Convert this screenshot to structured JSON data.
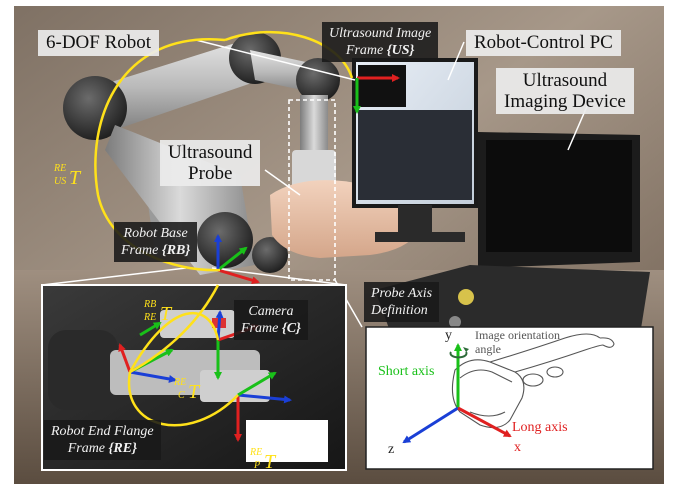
{
  "labels": {
    "robot": "6-DOF Robot",
    "us_frame_line1": "Ultrasound Image",
    "us_frame_line2": "Frame ",
    "us_frame_sym": "{US}",
    "pc": "Robot-Control PC",
    "imaging_line1": "Ultrasound",
    "imaging_line2": "Imaging Device",
    "probe_line1": "Ultrasound",
    "probe_line2": "Probe",
    "base_line1": "Robot Base",
    "base_line2": "Frame ",
    "base_sym": "{RB}",
    "camera_line1": "Camera",
    "camera_line2": "Frame ",
    "camera_sym": "{C}",
    "flange_line1": "Robot End Flange",
    "flange_line2": "Frame ",
    "flange_sym": "{RE}",
    "probe_axis_line1": "Probe Axis",
    "probe_axis_line2": "Definition"
  },
  "transforms": {
    "re_us": {
      "sup": "RE",
      "sub": "US",
      "sym": "T"
    },
    "rb_re": {
      "sup": "RB",
      "sub": "RE",
      "sym": "T"
    },
    "re_c": {
      "sup": "RE",
      "sub": "C",
      "sym": "T"
    },
    "re_p": {
      "sup": "RE",
      "sub": "P",
      "sym": "T"
    }
  },
  "probe_axes": {
    "y": "y",
    "x": "x",
    "z": "z",
    "short_axis": "Short axis",
    "long_axis": "Long axis",
    "orientation_line1": "Image orientation",
    "orientation_line2": "angle"
  },
  "colors": {
    "x_axis": "#e02020",
    "y_axis": "#19c019",
    "z_axis": "#1a3fd6",
    "transform": "#ffe11a"
  }
}
